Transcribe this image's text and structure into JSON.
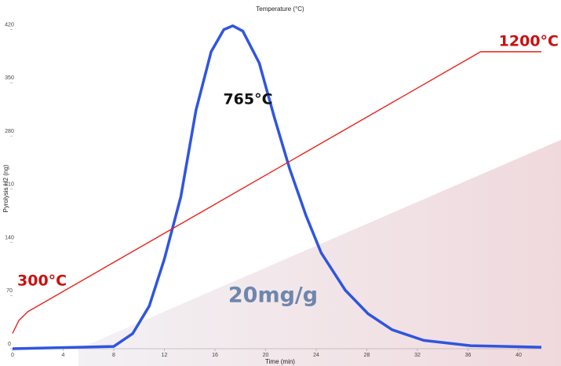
{
  "chart_data": {
    "type": "line",
    "title": "Temperature (°C)",
    "x_label": "Time (min)",
    "y_label": "Pyrolysis H2 (ng)",
    "xlim": [
      0,
      41.8
    ],
    "xticks": [
      0,
      4,
      8,
      12,
      16,
      20,
      24,
      28,
      32,
      36,
      40
    ],
    "ylim": [
      0,
      430
    ],
    "yticks": [
      0,
      70,
      140,
      210,
      280,
      350,
      420
    ],
    "y2lim": [
      172,
      1303
    ],
    "series": [
      {
        "name": "Pyrolysis H2",
        "color": "#2f55e0",
        "x": [
          0,
          8,
          9.5,
          10.8,
          12,
          13.3,
          14.5,
          15.7,
          16.7,
          17.4,
          18.2,
          19.5,
          20.7,
          21.9,
          23.2,
          24.4,
          26.3,
          28.1,
          30,
          32.5,
          36.2,
          41.8
        ],
        "values": [
          0,
          3,
          20,
          56,
          118,
          200,
          314,
          391,
          420,
          425,
          418,
          376,
          304,
          237,
          175,
          126,
          77,
          46,
          25,
          11,
          4,
          2
        ]
      },
      {
        "name": "Temperature",
        "color": "#e8221b",
        "axis": "y2",
        "x": [
          0,
          0.5,
          1.2,
          37,
          41.8
        ],
        "values": [
          225,
          270,
          300,
          1200,
          1200
        ]
      }
    ],
    "annotations": [
      {
        "text": "300°C",
        "color": "#cc1010"
      },
      {
        "text": "765°C",
        "color": "#111111"
      },
      {
        "text": "1200°C",
        "color": "#cc1010"
      },
      {
        "text": "20mg/g",
        "color": "#6f86ad"
      }
    ]
  }
}
